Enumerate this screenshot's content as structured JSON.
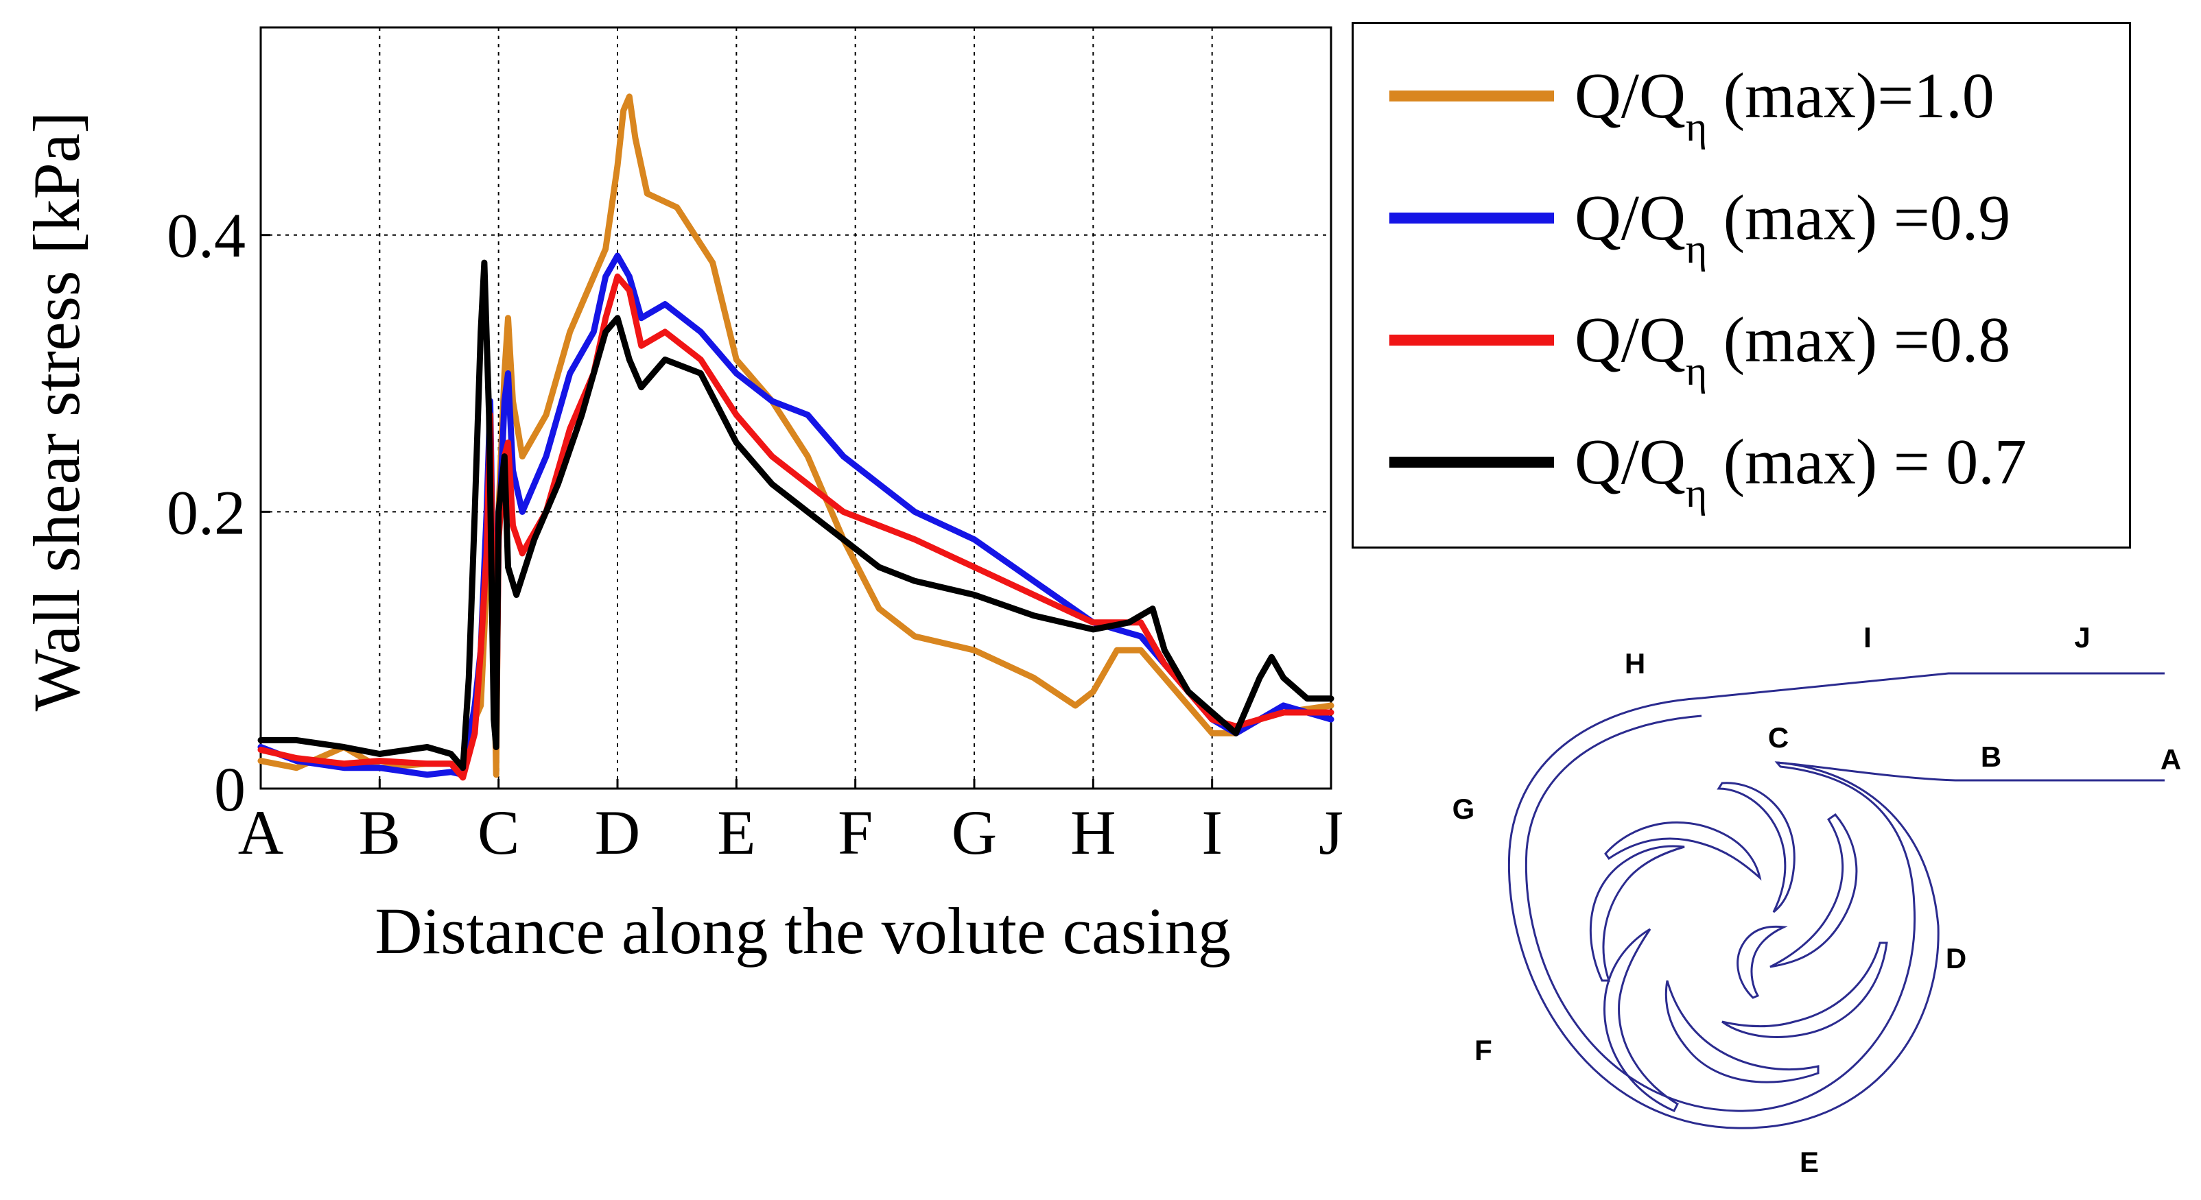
{
  "chart_data": {
    "type": "line",
    "xlabel": "Distance along the volute casing",
    "ylabel": "Wall shear stress [kPa]",
    "categories": [
      "A",
      "B",
      "C",
      "D",
      "E",
      "F",
      "G",
      "H",
      "I",
      "J"
    ],
    "yticks": [
      {
        "value": 0,
        "label": "0"
      },
      {
        "value": 0.2,
        "label": "0.2"
      },
      {
        "value": 0.4,
        "label": "0.4"
      }
    ],
    "xlim": [
      0,
      9
    ],
    "ylim": [
      0,
      0.55
    ],
    "grid": true,
    "legend_position": "top-right, outside plot",
    "series": [
      {
        "name": "Q/Qη (max)=1.0",
        "prefix": "Q/Q",
        "sub": "η",
        "suffix": " (max)=1.0",
        "color": "#D9861F",
        "points": [
          [
            0,
            0.02
          ],
          [
            0.3,
            0.015
          ],
          [
            0.7,
            0.03
          ],
          [
            1,
            0.015
          ],
          [
            1.4,
            0.018
          ],
          [
            1.6,
            0.018
          ],
          [
            1.7,
            0.012
          ],
          [
            1.8,
            0.05
          ],
          [
            1.85,
            0.06
          ],
          [
            1.9,
            0.15
          ],
          [
            1.93,
            0.25
          ],
          [
            1.96,
            0.1
          ],
          [
            1.98,
            0.01
          ],
          [
            2.0,
            0.2
          ],
          [
            2.05,
            0.3
          ],
          [
            2.08,
            0.34
          ],
          [
            2.12,
            0.28
          ],
          [
            2.2,
            0.24
          ],
          [
            2.4,
            0.27
          ],
          [
            2.6,
            0.33
          ],
          [
            2.9,
            0.39
          ],
          [
            3.0,
            0.45
          ],
          [
            3.05,
            0.49
          ],
          [
            3.1,
            0.5
          ],
          [
            3.15,
            0.47
          ],
          [
            3.25,
            0.43
          ],
          [
            3.5,
            0.42
          ],
          [
            3.8,
            0.38
          ],
          [
            4.0,
            0.31
          ],
          [
            4.3,
            0.28
          ],
          [
            4.6,
            0.24
          ],
          [
            4.9,
            0.18
          ],
          [
            5.2,
            0.13
          ],
          [
            5.5,
            0.11
          ],
          [
            6.0,
            0.1
          ],
          [
            6.5,
            0.08
          ],
          [
            6.85,
            0.06
          ],
          [
            7.0,
            0.07
          ],
          [
            7.2,
            0.1
          ],
          [
            7.4,
            0.1
          ],
          [
            7.6,
            0.08
          ],
          [
            7.8,
            0.06
          ],
          [
            8.0,
            0.04
          ],
          [
            8.2,
            0.04
          ],
          [
            8.4,
            0.05
          ],
          [
            8.6,
            0.055
          ],
          [
            9.0,
            0.06
          ]
        ]
      },
      {
        "name": "Q/Qη (max) =0.9",
        "prefix": "Q/Q",
        "sub": "η",
        "suffix": " (max) =0.9",
        "color": "#1515E6",
        "points": [
          [
            0,
            0.03
          ],
          [
            0.3,
            0.02
          ],
          [
            0.7,
            0.015
          ],
          [
            1,
            0.015
          ],
          [
            1.4,
            0.01
          ],
          [
            1.6,
            0.012
          ],
          [
            1.7,
            0.01
          ],
          [
            1.8,
            0.06
          ],
          [
            1.85,
            0.1
          ],
          [
            1.9,
            0.2
          ],
          [
            1.93,
            0.28
          ],
          [
            1.96,
            0.12
          ],
          [
            1.98,
            0.05
          ],
          [
            2.0,
            0.18
          ],
          [
            2.05,
            0.28
          ],
          [
            2.08,
            0.3
          ],
          [
            2.12,
            0.23
          ],
          [
            2.2,
            0.2
          ],
          [
            2.4,
            0.24
          ],
          [
            2.6,
            0.3
          ],
          [
            2.8,
            0.33
          ],
          [
            2.9,
            0.37
          ],
          [
            3.0,
            0.385
          ],
          [
            3.1,
            0.37
          ],
          [
            3.2,
            0.34
          ],
          [
            3.4,
            0.35
          ],
          [
            3.7,
            0.33
          ],
          [
            4.0,
            0.3
          ],
          [
            4.3,
            0.28
          ],
          [
            4.6,
            0.27
          ],
          [
            4.9,
            0.24
          ],
          [
            5.2,
            0.22
          ],
          [
            5.5,
            0.2
          ],
          [
            6.0,
            0.18
          ],
          [
            6.5,
            0.15
          ],
          [
            7.0,
            0.12
          ],
          [
            7.4,
            0.11
          ],
          [
            7.6,
            0.09
          ],
          [
            7.8,
            0.07
          ],
          [
            8.0,
            0.05
          ],
          [
            8.2,
            0.04
          ],
          [
            8.4,
            0.05
          ],
          [
            8.6,
            0.06
          ],
          [
            9.0,
            0.05
          ]
        ]
      },
      {
        "name": "Q/Qη (max) =0.8",
        "prefix": "Q/Q",
        "sub": "η",
        "suffix": " (max) =0.8",
        "color": "#F01515",
        "points": [
          [
            0,
            0.028
          ],
          [
            0.3,
            0.022
          ],
          [
            0.7,
            0.018
          ],
          [
            1,
            0.02
          ],
          [
            1.4,
            0.018
          ],
          [
            1.6,
            0.018
          ],
          [
            1.7,
            0.008
          ],
          [
            1.8,
            0.04
          ],
          [
            1.85,
            0.1
          ],
          [
            1.9,
            0.17
          ],
          [
            1.93,
            0.27
          ],
          [
            1.96,
            0.1
          ],
          [
            1.98,
            0.03
          ],
          [
            2.0,
            0.18
          ],
          [
            2.05,
            0.24
          ],
          [
            2.08,
            0.25
          ],
          [
            2.12,
            0.19
          ],
          [
            2.2,
            0.17
          ],
          [
            2.4,
            0.2
          ],
          [
            2.6,
            0.26
          ],
          [
            2.8,
            0.3
          ],
          [
            2.9,
            0.34
          ],
          [
            3.0,
            0.37
          ],
          [
            3.1,
            0.36
          ],
          [
            3.2,
            0.32
          ],
          [
            3.4,
            0.33
          ],
          [
            3.7,
            0.31
          ],
          [
            4.0,
            0.27
          ],
          [
            4.3,
            0.24
          ],
          [
            4.6,
            0.22
          ],
          [
            4.9,
            0.2
          ],
          [
            5.2,
            0.19
          ],
          [
            5.5,
            0.18
          ],
          [
            6.0,
            0.16
          ],
          [
            6.5,
            0.14
          ],
          [
            7.0,
            0.12
          ],
          [
            7.4,
            0.12
          ],
          [
            7.6,
            0.09
          ],
          [
            7.8,
            0.07
          ],
          [
            8.0,
            0.05
          ],
          [
            8.2,
            0.045
          ],
          [
            8.4,
            0.05
          ],
          [
            8.6,
            0.055
          ],
          [
            9.0,
            0.055
          ]
        ]
      },
      {
        "name": "Q/Qη (max) = 0.7",
        "prefix": "Q/Q",
        "sub": "η",
        "suffix": " (max) = 0.7",
        "color": "#000000",
        "points": [
          [
            0,
            0.035
          ],
          [
            0.3,
            0.035
          ],
          [
            0.7,
            0.03
          ],
          [
            1,
            0.025
          ],
          [
            1.4,
            0.03
          ],
          [
            1.6,
            0.025
          ],
          [
            1.7,
            0.015
          ],
          [
            1.75,
            0.08
          ],
          [
            1.8,
            0.2
          ],
          [
            1.85,
            0.33
          ],
          [
            1.88,
            0.38
          ],
          [
            1.92,
            0.27
          ],
          [
            1.96,
            0.05
          ],
          [
            1.98,
            0.03
          ],
          [
            2.0,
            0.2
          ],
          [
            2.05,
            0.24
          ],
          [
            2.08,
            0.16
          ],
          [
            2.15,
            0.14
          ],
          [
            2.3,
            0.18
          ],
          [
            2.5,
            0.22
          ],
          [
            2.7,
            0.27
          ],
          [
            2.9,
            0.33
          ],
          [
            3.0,
            0.34
          ],
          [
            3.1,
            0.31
          ],
          [
            3.2,
            0.29
          ],
          [
            3.4,
            0.31
          ],
          [
            3.7,
            0.3
          ],
          [
            4.0,
            0.25
          ],
          [
            4.3,
            0.22
          ],
          [
            4.6,
            0.2
          ],
          [
            4.9,
            0.18
          ],
          [
            5.2,
            0.16
          ],
          [
            5.5,
            0.15
          ],
          [
            6.0,
            0.14
          ],
          [
            6.5,
            0.125
          ],
          [
            7.0,
            0.115
          ],
          [
            7.3,
            0.12
          ],
          [
            7.5,
            0.13
          ],
          [
            7.6,
            0.1
          ],
          [
            7.8,
            0.07
          ],
          [
            8.0,
            0.055
          ],
          [
            8.2,
            0.04
          ],
          [
            8.3,
            0.06
          ],
          [
            8.4,
            0.08
          ],
          [
            8.5,
            0.095
          ],
          [
            8.6,
            0.08
          ],
          [
            8.8,
            0.065
          ],
          [
            9.0,
            0.065
          ]
        ]
      }
    ]
  },
  "schematic": {
    "labels": {
      "A": "A",
      "B": "B",
      "C": "C",
      "D": "D",
      "E": "E",
      "F": "F",
      "G": "G",
      "H": "H",
      "I": "I",
      "J": "J"
    }
  }
}
